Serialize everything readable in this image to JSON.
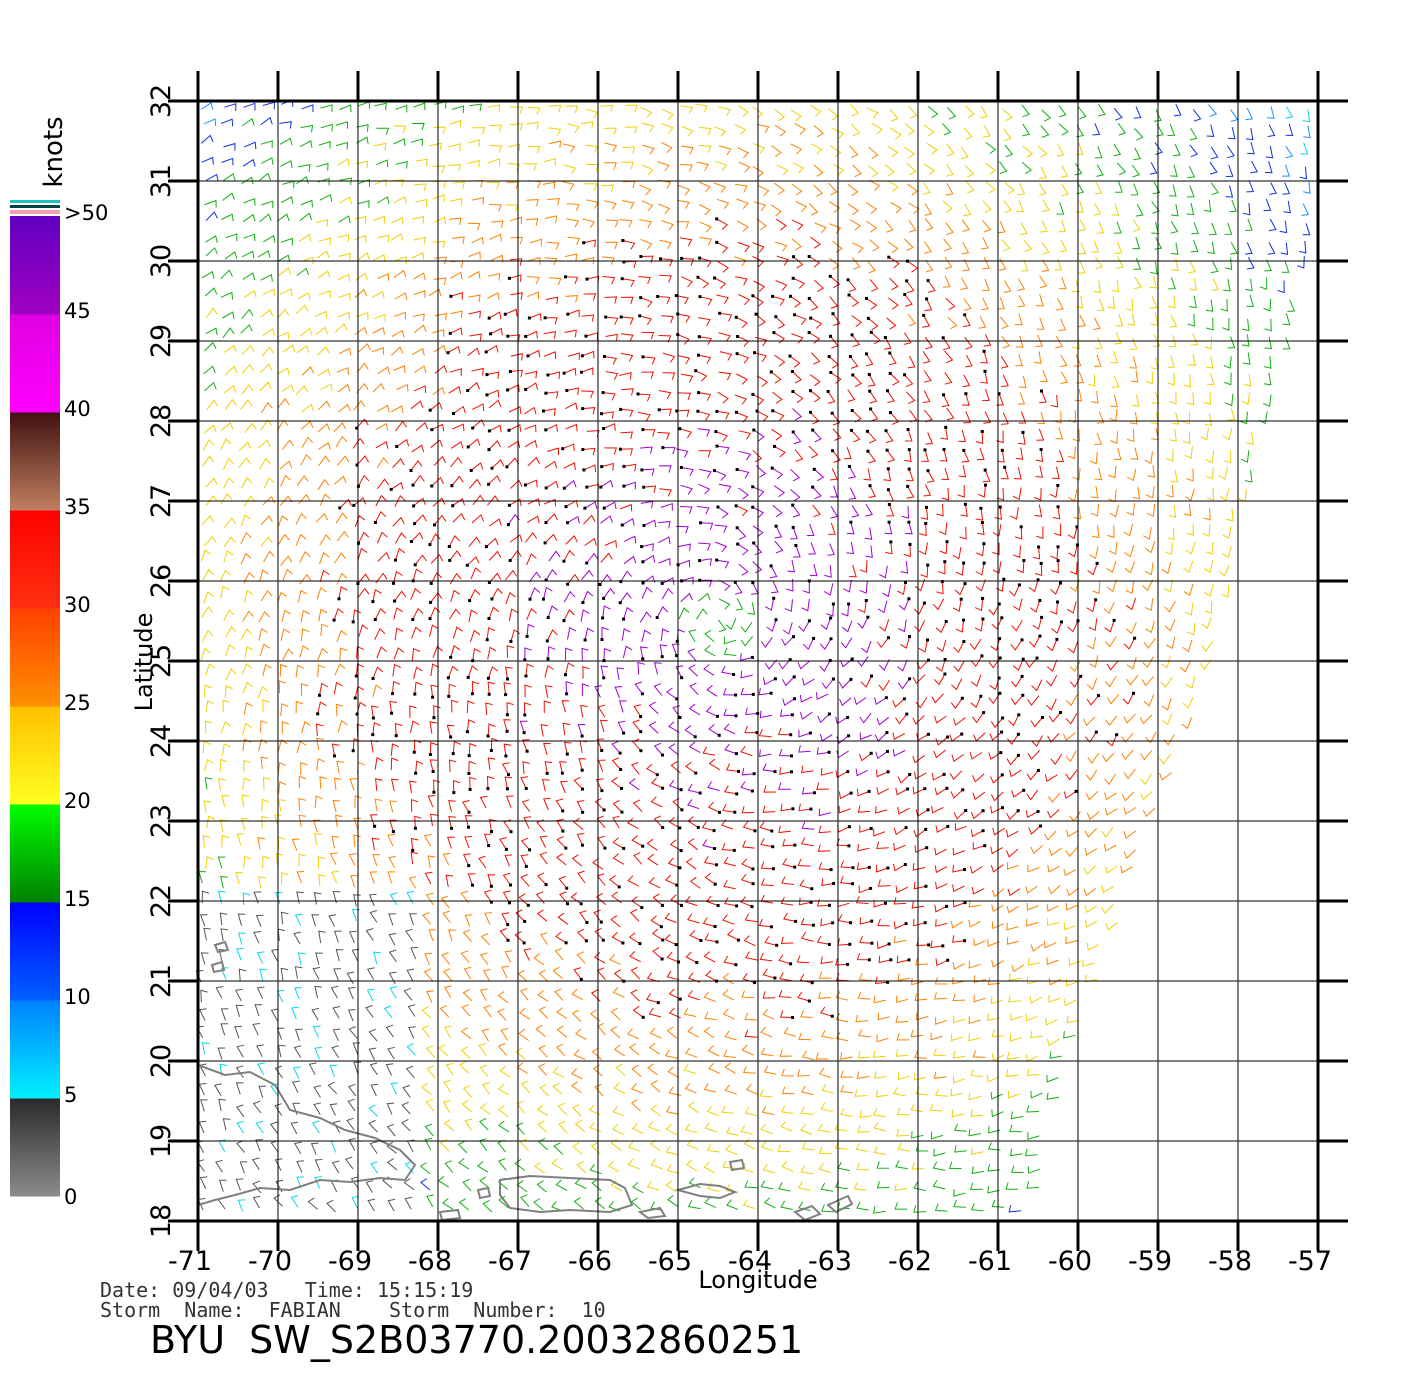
{
  "map": {
    "lon_min": -71,
    "lon_max": -57,
    "lat_min": 18,
    "lat_max": 32,
    "lon_ticks": [
      "-71",
      "-70",
      "-69",
      "-68",
      "-67",
      "-66",
      "-65",
      "-64",
      "-63",
      "-62",
      "-61",
      "-60",
      "-59",
      "-58",
      "-57"
    ],
    "lat_ticks": [
      "18",
      "19",
      "20",
      "21",
      "22",
      "23",
      "24",
      "25",
      "26",
      "27",
      "28",
      "29",
      "30",
      "31",
      "32"
    ],
    "xlabel": "Longitude",
    "ylabel": "Latitude",
    "storm_center": {
      "lon": -64.5,
      "lat": 25.5
    }
  },
  "legend": {
    "unit": "knots",
    "labels": [
      "0",
      "5",
      "10",
      "15",
      "20",
      "25",
      "30",
      "35",
      "40",
      "45",
      ">50"
    ],
    "bands": [
      {
        "range": "0-5",
        "colors": [
          "#8c8c8c",
          "#2a2a2a"
        ]
      },
      {
        "range": "5-10",
        "colors": [
          "#00f0ff",
          "#0080ff"
        ]
      },
      {
        "range": "10-15",
        "colors": [
          "#0060ff",
          "#0000ff"
        ]
      },
      {
        "range": "15-20",
        "colors": [
          "#008000",
          "#00ff00"
        ]
      },
      {
        "range": "20-25",
        "colors": [
          "#ffff20",
          "#ffc000"
        ]
      },
      {
        "range": "25-30",
        "colors": [
          "#ff9000",
          "#ff4000"
        ]
      },
      {
        "range": "30-35",
        "colors": [
          "#ff3010",
          "#ff0000"
        ]
      },
      {
        "range": "35-40",
        "colors": [
          "#c08060",
          "#401010"
        ]
      },
      {
        "range": "40-45",
        "colors": [
          "#ff00ff",
          "#e000e0"
        ]
      },
      {
        "range": "45-50",
        "colors": [
          "#a000c0",
          "#6000c0"
        ]
      }
    ]
  },
  "info": {
    "line1": "Date: 09/04/03   Time: 15:15:19",
    "line2": "Storm  Name:  FABIAN    Storm  Number:  10",
    "product": "BYU  SW_S2B03770.20032860251"
  }
}
